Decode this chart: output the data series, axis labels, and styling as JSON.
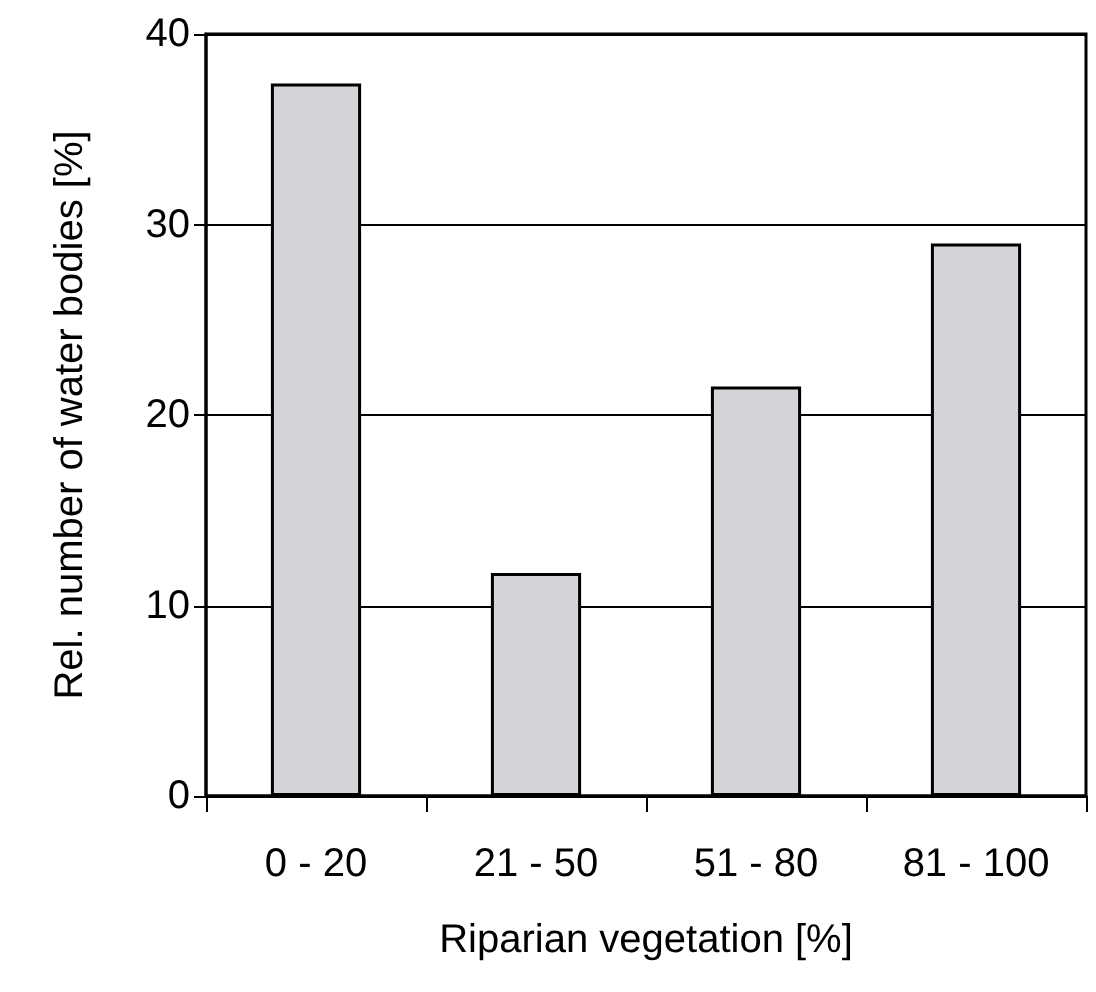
{
  "chart_data": {
    "type": "bar",
    "xlabel": "Riparian vegetation [%]",
    "ylabel": "Rel. number of water bodies [%]",
    "categories": [
      "0 - 20",
      "21 - 50",
      "51 - 80",
      "81 - 100"
    ],
    "values": [
      37.4,
      11.7,
      21.5,
      29.0
    ],
    "color": "#d4d3d8",
    "ylim": [
      0,
      40
    ],
    "yticks": [
      0,
      10,
      20,
      30,
      40
    ],
    "grid": "y"
  }
}
